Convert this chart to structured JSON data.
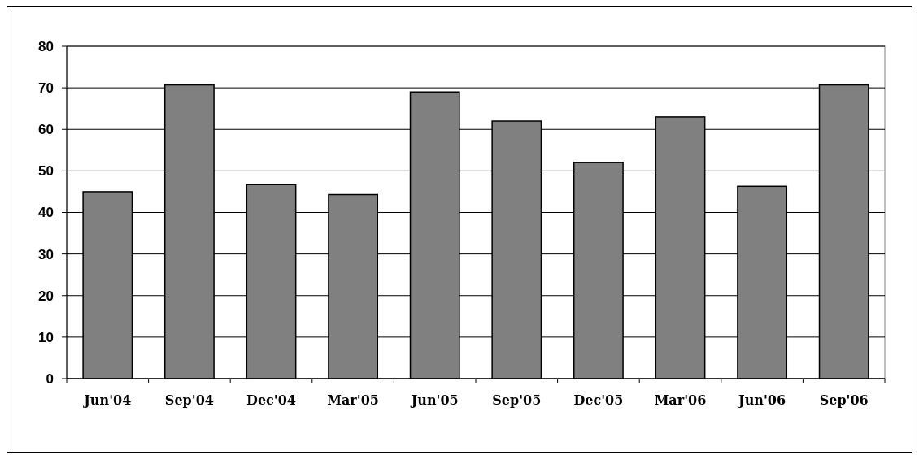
{
  "chart_data": {
    "type": "bar",
    "categories": [
      "Jun'04",
      "Sep'04",
      "Dec'04",
      "Mar'05",
      "Jun'05",
      "Sep'05",
      "Dec'05",
      "Mar'06",
      "Jun'06",
      "Sep'06"
    ],
    "values": [
      45,
      70.7,
      46.7,
      44.3,
      69,
      62,
      52,
      63,
      46.3,
      70.7
    ],
    "color": "#808080",
    "ylim": [
      0,
      80
    ],
    "yticks": [
      0,
      10,
      20,
      30,
      40,
      50,
      60,
      70,
      80
    ],
    "grid": "y"
  }
}
